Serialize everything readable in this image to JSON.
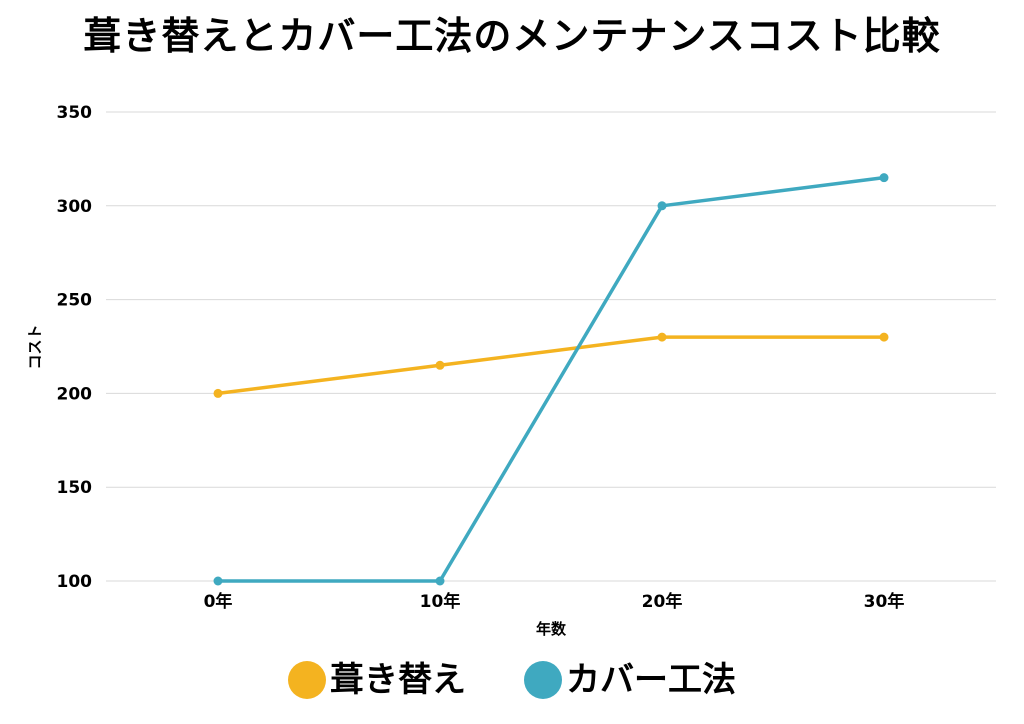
{
  "chart_data": {
    "type": "line",
    "title": "葺き替えとカバー工法のメンテナンスコスト比較",
    "xlabel": "年数",
    "ylabel": "コスト",
    "categories": [
      "0年",
      "10年",
      "20年",
      "30年"
    ],
    "ylim": [
      100,
      350
    ],
    "yticks": [
      100,
      150,
      200,
      250,
      300,
      350
    ],
    "grid": true,
    "legend_position": "bottom",
    "series": [
      {
        "name": "葺き替え",
        "color": "#F4B320",
        "values": [
          200,
          215,
          230,
          230
        ]
      },
      {
        "name": "カバー工法",
        "color": "#3FA9C0",
        "values": [
          100,
          100,
          300,
          315
        ]
      }
    ]
  }
}
